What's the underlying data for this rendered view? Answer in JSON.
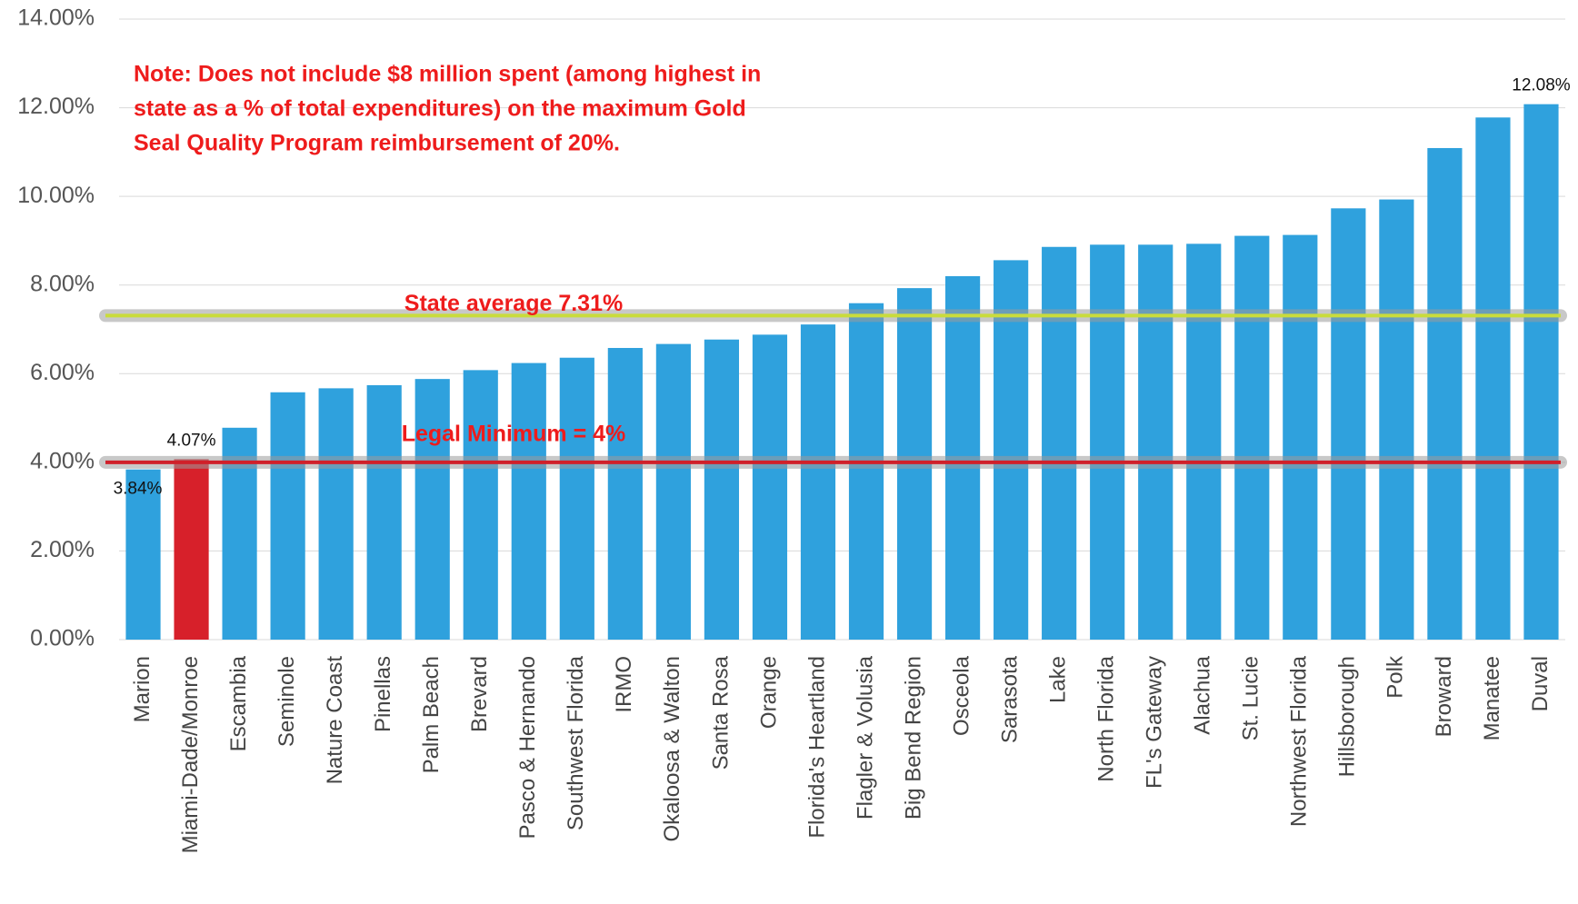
{
  "chart_data": {
    "type": "bar",
    "note": [
      "Note: Does not include $8 million spent (among highest in",
      "state as a % of total expenditures) on the maximum Gold",
      "Seal Quality Program reimbursement of 20%."
    ],
    "categories": [
      "Marion",
      "Miami-Dade/Monroe",
      "Escambia",
      "Seminole",
      "Nature Coast",
      "Pinellas",
      "Palm Beach",
      "Brevard",
      "Pasco & Hernando",
      "Southwest Florida",
      "IRMO",
      "Okaloosa & Walton",
      "Santa Rosa",
      "Orange",
      "Florida's Heartland",
      "Flagler & Volusia",
      "Big Bend Region",
      "Osceola",
      "Sarasota",
      "Lake",
      "North Florida",
      "FL's Gateway",
      "Alachua",
      "St. Lucie",
      "Northwest Florida",
      "Hillsborough",
      "Polk",
      "Broward",
      "Manatee",
      "Duval"
    ],
    "values": [
      3.84,
      4.07,
      4.78,
      5.58,
      5.67,
      5.74,
      5.88,
      6.08,
      6.24,
      6.36,
      6.58,
      6.67,
      6.77,
      6.88,
      7.11,
      7.59,
      7.93,
      8.2,
      8.56,
      8.86,
      8.91,
      8.91,
      8.93,
      9.11,
      9.13,
      9.73,
      9.93,
      11.09,
      11.78,
      12.08
    ],
    "value_labels": [
      "3.84%",
      "4.07%",
      null,
      null,
      null,
      null,
      null,
      null,
      null,
      null,
      null,
      null,
      null,
      null,
      null,
      null,
      null,
      null,
      null,
      null,
      null,
      null,
      null,
      null,
      null,
      null,
      null,
      null,
      null,
      "12.08%"
    ],
    "colors": [
      "#2fa1dd",
      "#d7202a",
      "#2fa1dd",
      "#2fa1dd",
      "#2fa1dd",
      "#2fa1dd",
      "#2fa1dd",
      "#2fa1dd",
      "#2fa1dd",
      "#2fa1dd",
      "#2fa1dd",
      "#2fa1dd",
      "#2fa1dd",
      "#2fa1dd",
      "#2fa1dd",
      "#2fa1dd",
      "#2fa1dd",
      "#2fa1dd",
      "#2fa1dd",
      "#2fa1dd",
      "#2fa1dd",
      "#2fa1dd",
      "#2fa1dd",
      "#2fa1dd",
      "#2fa1dd",
      "#2fa1dd",
      "#2fa1dd",
      "#2fa1dd",
      "#2fa1dd",
      "#2fa1dd"
    ],
    "reference_lines": [
      {
        "label": "State average 7.31%",
        "value": 7.31,
        "color": "#c9dc3c"
      },
      {
        "label": "Legal Minimum = 4%",
        "value": 4,
        "color": "#d0202a"
      }
    ],
    "ylim": [
      0,
      14
    ],
    "yticks": [
      {
        "value": 0,
        "label": "0.00%"
      },
      {
        "value": 2,
        "label": "2.00%"
      },
      {
        "value": 4,
        "label": "4.00%"
      },
      {
        "value": 6,
        "label": "6.00%"
      },
      {
        "value": 8,
        "label": "8.00%"
      },
      {
        "value": 10,
        "label": "10.00%"
      },
      {
        "value": 12,
        "label": "12.00%"
      },
      {
        "value": 14,
        "label": "14.00%"
      }
    ],
    "grid": true
  }
}
